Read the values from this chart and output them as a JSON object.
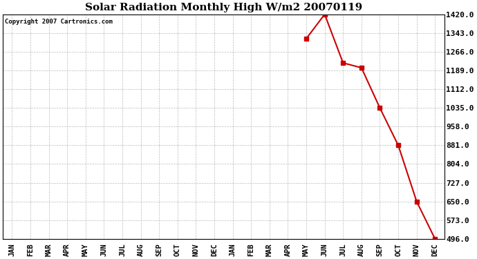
{
  "title": "Solar Radiation Monthly High W/m2 20070119",
  "copyright": "Copyright 2007 Cartronics.com",
  "x_labels": [
    "JAN",
    "FEB",
    "MAR",
    "APR",
    "MAY",
    "JUN",
    "JUL",
    "AUG",
    "SEP",
    "OCT",
    "NOV",
    "DEC",
    "JAN",
    "FEB",
    "MAR",
    "APR",
    "MAY",
    "JUN",
    "JUL",
    "AUG",
    "SEP",
    "OCT",
    "NOV",
    "DEC"
  ],
  "data_x_indices": [
    16,
    17,
    18,
    19,
    20,
    21,
    22,
    23
  ],
  "data_y": [
    1320,
    1420,
    1220,
    1200,
    1035,
    881,
    650,
    496
  ],
  "y_ticks": [
    496.0,
    573.0,
    650.0,
    727.0,
    804.0,
    881.0,
    958.0,
    1035.0,
    1112.0,
    1189.0,
    1266.0,
    1343.0,
    1420.0
  ],
  "y_min": 496.0,
  "y_max": 1420.0,
  "line_color": "#cc0000",
  "marker": "s",
  "marker_size": 4,
  "marker_color": "#cc0000",
  "bg_color": "#ffffff",
  "grid_color": "#aaaaaa",
  "title_fontsize": 11,
  "copyright_fontsize": 6.5,
  "tick_fontsize": 7.5,
  "ytick_fontsize": 8
}
